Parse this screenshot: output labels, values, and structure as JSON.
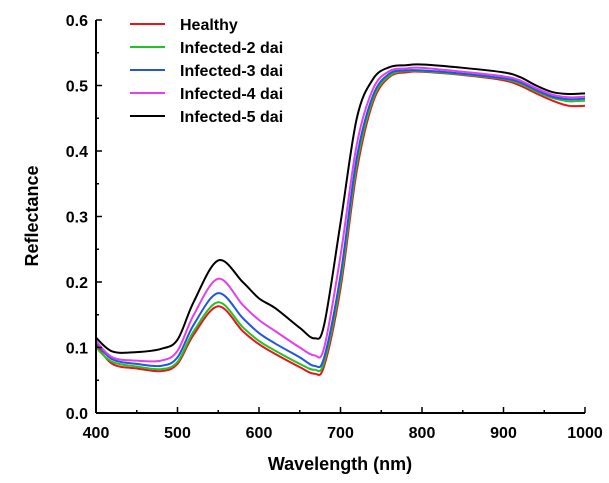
{
  "chart_data": {
    "type": "line",
    "title": "",
    "xlabel": "Wavelength (nm)",
    "ylabel": "Reflectance",
    "xlim": [
      400,
      1000
    ],
    "ylim": [
      0,
      0.6
    ],
    "xticks": [
      400,
      500,
      600,
      700,
      800,
      900,
      1000
    ],
    "yticks": [
      0.0,
      0.1,
      0.2,
      0.3,
      0.4,
      0.5,
      0.6
    ],
    "ytick_labels": [
      "0.0",
      "0.1",
      "0.2",
      "0.3",
      "0.4",
      "0.5",
      "0.6"
    ],
    "grid": false,
    "legend_placement": "top-left",
    "x": [
      400,
      420,
      450,
      480,
      500,
      520,
      550,
      580,
      600,
      620,
      650,
      668,
      680,
      700,
      720,
      740,
      760,
      780,
      800,
      850,
      900,
      920,
      940,
      960,
      980,
      1000
    ],
    "series": [
      {
        "name": "Healthy",
        "color": "#e8141c",
        "values": [
          0.105,
          0.075,
          0.068,
          0.064,
          0.075,
          0.12,
          0.163,
          0.125,
          0.105,
          0.09,
          0.07,
          0.06,
          0.072,
          0.19,
          0.37,
          0.475,
          0.513,
          0.52,
          0.521,
          0.516,
          0.508,
          0.5,
          0.488,
          0.477,
          0.469,
          0.469
        ]
      },
      {
        "name": "Infected-2 dai",
        "color": "#22c322",
        "values": [
          0.1,
          0.078,
          0.071,
          0.067,
          0.078,
          0.125,
          0.169,
          0.131,
          0.11,
          0.095,
          0.075,
          0.066,
          0.078,
          0.2,
          0.38,
          0.48,
          0.515,
          0.522,
          0.522,
          0.517,
          0.51,
          0.503,
          0.491,
          0.481,
          0.476,
          0.477
        ]
      },
      {
        "name": "Infected-3 dai",
        "color": "#2255e0",
        "values": [
          0.108,
          0.082,
          0.075,
          0.072,
          0.085,
          0.135,
          0.183,
          0.145,
          0.122,
          0.106,
          0.085,
          0.072,
          0.085,
          0.21,
          0.39,
          0.485,
          0.518,
          0.523,
          0.523,
          0.518,
          0.511,
          0.505,
          0.493,
          0.483,
          0.479,
          0.48
        ]
      },
      {
        "name": "Infected-4 dai",
        "color": "#e040f0",
        "values": [
          0.11,
          0.085,
          0.08,
          0.08,
          0.095,
          0.15,
          0.205,
          0.165,
          0.142,
          0.125,
          0.1,
          0.088,
          0.1,
          0.24,
          0.41,
          0.495,
          0.522,
          0.526,
          0.527,
          0.521,
          0.514,
          0.508,
          0.496,
          0.486,
          0.482,
          0.483
        ]
      },
      {
        "name": "Infected-5 dai",
        "color": "#000000",
        "values": [
          0.115,
          0.094,
          0.093,
          0.098,
          0.112,
          0.17,
          0.233,
          0.2,
          0.175,
          0.16,
          0.13,
          0.114,
          0.135,
          0.29,
          0.45,
          0.51,
          0.528,
          0.531,
          0.532,
          0.527,
          0.52,
          0.513,
          0.5,
          0.49,
          0.487,
          0.488
        ]
      }
    ]
  }
}
